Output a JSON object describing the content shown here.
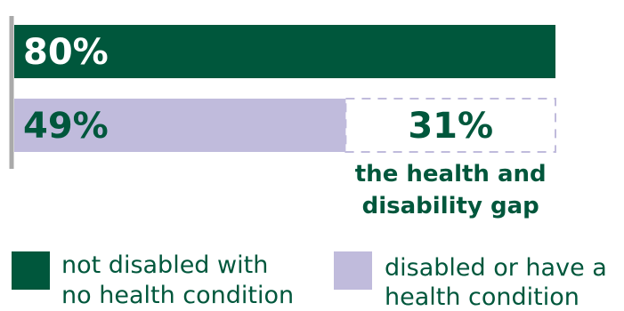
{
  "chart_data": {
    "type": "bar",
    "orientation": "horizontal",
    "xlim": [
      0,
      100
    ],
    "series": [
      {
        "name": "not disabled with no health condition",
        "value": 80,
        "label": "80%",
        "color": "#00573c"
      },
      {
        "name": "disabled or have a health condition",
        "value": 49,
        "label": "49%",
        "color": "#c0bbdc"
      }
    ],
    "gap": {
      "value": 31,
      "label": "31%",
      "text_lines": [
        "the health and",
        "disability gap"
      ],
      "color": "#00573c"
    },
    "legend": {
      "placement": "bottom",
      "items": [
        {
          "lines": [
            "not disabled with",
            "no health condition"
          ],
          "color": "#00573c"
        },
        {
          "lines": [
            "disabled or have a",
            "health condition"
          ],
          "color": "#c0bbdc"
        }
      ]
    }
  }
}
